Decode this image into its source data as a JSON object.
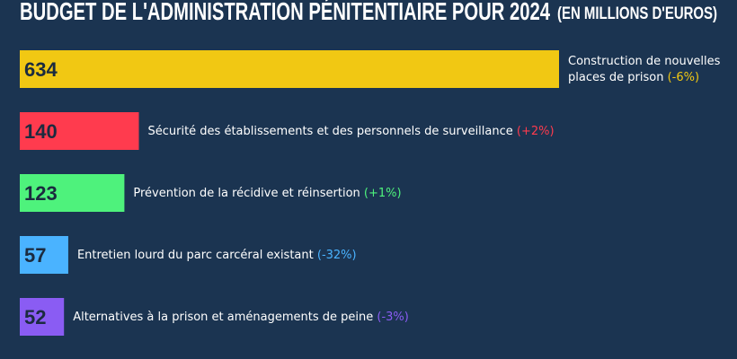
{
  "chart_data": {
    "type": "bar",
    "orientation": "horizontal",
    "title": "BUDGET DE L'ADMINISTRATION PÉNITENTIAIRE POUR 2024",
    "subtitle": "(EN MILLIONS D'EUROS)",
    "categories": [
      "Construction de nouvelles places de prison",
      "Sécurité des établissements et des personnels de surveillance",
      "Prévention de la récidive et réinsertion",
      "Entretien lourd du parc carcéral existant",
      "Alternatives à la prison et aménagements de peine"
    ],
    "changes": [
      "(-6%)",
      "(+2%)",
      "(+1%)",
      "(-32%)",
      "(-3%)"
    ],
    "values": [
      634,
      140,
      123,
      57,
      52
    ],
    "colors": [
      "#f1c813",
      "#ff3b4e",
      "#4ef27c",
      "#4ab3ff",
      "#8a5cf3"
    ]
  }
}
